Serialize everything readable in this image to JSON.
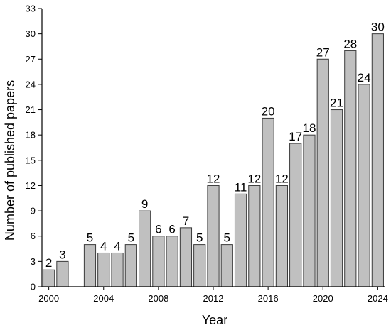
{
  "chart_data": {
    "type": "bar",
    "x": [
      2000,
      2001,
      2003,
      2004,
      2005,
      2006,
      2007,
      2008,
      2009,
      2010,
      2011,
      2012,
      2013,
      2014,
      2015,
      2016,
      2017,
      2018,
      2019,
      2020,
      2021,
      2022,
      2023,
      2024
    ],
    "values": [
      2,
      3,
      5,
      4,
      4,
      5,
      9,
      6,
      6,
      7,
      5,
      12,
      5,
      11,
      12,
      20,
      12,
      17,
      18,
      27,
      21,
      28,
      24,
      30
    ],
    "data_labels": [
      "2",
      "3",
      "5",
      "4",
      "4",
      "5",
      "9",
      "6",
      "6",
      "7",
      "5",
      "12",
      "5",
      "11",
      "12",
      "20",
      "12",
      "17",
      "18",
      "27",
      "21",
      "28",
      "24",
      "30"
    ],
    "xlim": [
      1999.5,
      2024.5
    ],
    "x_ticks": [
      2000,
      2004,
      2008,
      2012,
      2016,
      2020,
      2024
    ],
    "x_tick_labels": [
      "2000",
      "2004",
      "2008",
      "2012",
      "2016",
      "2020",
      "2024"
    ],
    "ylim": [
      0,
      33
    ],
    "y_ticks": [
      0,
      3,
      6,
      9,
      12,
      15,
      18,
      21,
      24,
      27,
      30,
      33
    ],
    "y_tick_labels": [
      "0",
      "3",
      "6",
      "9",
      "12",
      "15",
      "18",
      "21",
      "24",
      "27",
      "30",
      "33"
    ],
    "xlabel": "Year",
    "ylabel": "Number of published papers",
    "grid": false,
    "legend": "none",
    "bar_color": "#c0c0c0",
    "bar_edge_color": "#3a3a3a"
  }
}
